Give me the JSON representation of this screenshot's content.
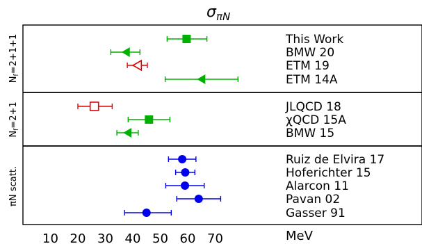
{
  "chart_data": {
    "type": "scatter",
    "title_main": "σ",
    "title_sub": "πN",
    "x_unit_label": "MeV",
    "xlim": [
      0,
      80
    ],
    "x_ticks": [
      "10",
      "20",
      "30",
      "40",
      "50",
      "60",
      "70"
    ],
    "groups": [
      {
        "label": "N",
        "label_sub": "f",
        "label_rest": "=2+1+1"
      },
      {
        "label": "N",
        "label_sub": "f",
        "label_rest": "=2+1"
      },
      {
        "label": "πN scatt.",
        "label_sub": "",
        "label_rest": ""
      }
    ],
    "entries": [
      {
        "name": "This Work",
        "group": 0,
        "value": 59.6,
        "err_lo": 52.5,
        "err_hi": 67.0,
        "marker": "square",
        "filled": true,
        "color": "#00b000"
      },
      {
        "name": "BMW 20",
        "group": 0,
        "value": 37.4,
        "err_lo": 32.0,
        "err_hi": 42.6,
        "marker": "triangle",
        "filled": true,
        "color": "#00b000"
      },
      {
        "name": "ETM 19",
        "group": 0,
        "value": 41.6,
        "err_lo": 38.0,
        "err_hi": 45.3,
        "marker": "triangle",
        "filled": false,
        "color": "#e00000"
      },
      {
        "name": "ETM 14A",
        "group": 0,
        "value": 64.9,
        "err_lo": 51.8,
        "err_hi": 78.3,
        "marker": "triangle",
        "filled": true,
        "color": "#00b000"
      },
      {
        "name": "JLQCD 18",
        "group": 1,
        "value": 26.0,
        "err_lo": 20.0,
        "err_hi": 32.5,
        "marker": "square",
        "filled": false,
        "color": "#e00000"
      },
      {
        "name": "χQCD 15A",
        "group": 1,
        "value": 45.9,
        "err_lo": 38.3,
        "err_hi": 53.5,
        "marker": "square",
        "filled": true,
        "color": "#00b000"
      },
      {
        "name": "BMW 15",
        "group": 1,
        "value": 38.0,
        "err_lo": 34.2,
        "err_hi": 42.0,
        "marker": "triangle",
        "filled": true,
        "color": "#00b000"
      },
      {
        "name": "Ruiz de Elvira 17",
        "group": 2,
        "value": 58.0,
        "err_lo": 53.0,
        "err_hi": 63.0,
        "marker": "circle",
        "filled": true,
        "color": "#0000ee"
      },
      {
        "name": "Hoferichter 15",
        "group": 2,
        "value": 59.1,
        "err_lo": 55.6,
        "err_hi": 62.6,
        "marker": "circle",
        "filled": true,
        "color": "#0000ee"
      },
      {
        "name": "Alarcon 11",
        "group": 2,
        "value": 59.0,
        "err_lo": 52.0,
        "err_hi": 66.0,
        "marker": "circle",
        "filled": true,
        "color": "#0000ee"
      },
      {
        "name": "Pavan 02",
        "group": 2,
        "value": 64.0,
        "err_lo": 56.0,
        "err_hi": 72.0,
        "marker": "circle",
        "filled": true,
        "color": "#0000ee"
      },
      {
        "name": "Gasser 91",
        "group": 2,
        "value": 45.0,
        "err_lo": 37.0,
        "err_hi": 54.0,
        "marker": "circle",
        "filled": true,
        "color": "#0000ee"
      }
    ]
  }
}
